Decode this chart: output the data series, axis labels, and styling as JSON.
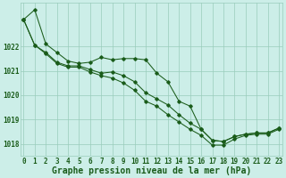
{
  "title": "Graphe pression niveau de la mer (hPa)",
  "bg_color": "#cceee8",
  "grid_color": "#99ccbb",
  "line_color": "#1a5c1a",
  "marker_color": "#1a5c1a",
  "x_values": [
    0,
    1,
    2,
    3,
    4,
    5,
    6,
    7,
    8,
    9,
    10,
    11,
    12,
    13,
    14,
    15,
    16,
    17,
    18,
    19,
    20,
    21,
    22,
    23
  ],
  "line1": [
    1023.1,
    1023.5,
    1022.1,
    1021.75,
    1021.4,
    1021.3,
    1021.35,
    1021.55,
    1021.45,
    1021.5,
    1021.5,
    1021.45,
    1020.9,
    1020.55,
    1019.75,
    1019.55,
    1018.6,
    1018.15,
    1018.1,
    1018.3,
    1018.4,
    1018.45,
    1018.45,
    1018.65
  ],
  "line2": [
    1023.1,
    1022.05,
    1021.75,
    1021.35,
    1021.2,
    1021.2,
    1021.05,
    1020.9,
    1020.95,
    1020.8,
    1020.55,
    1020.1,
    1019.85,
    1019.6,
    1019.2,
    1018.85,
    1018.6,
    1018.15,
    1018.1,
    1018.3,
    1018.4,
    1018.45,
    1018.45,
    1018.65
  ],
  "line3": [
    1023.1,
    1022.05,
    1021.7,
    1021.3,
    1021.15,
    1021.15,
    1020.95,
    1020.8,
    1020.7,
    1020.5,
    1020.2,
    1019.75,
    1019.55,
    1019.2,
    1018.9,
    1018.6,
    1018.35,
    1017.95,
    1017.95,
    1018.2,
    1018.35,
    1018.4,
    1018.4,
    1018.6
  ],
  "ylim": [
    1017.5,
    1023.8
  ],
  "yticks": [
    1018,
    1019,
    1020,
    1021,
    1022
  ],
  "tick_fontsize": 5.5,
  "xlabel_fontsize": 7.0
}
